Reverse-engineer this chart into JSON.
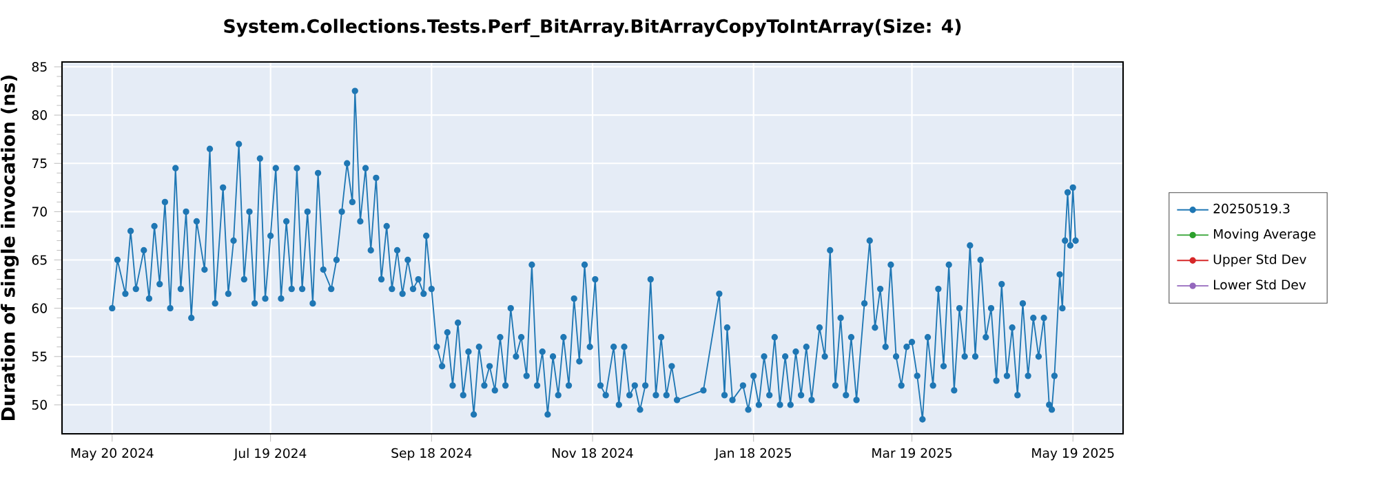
{
  "chart_data": {
    "type": "line",
    "title": "System.Collections.Tests.Perf_BitArray.BitArrayCopyToIntArray(Size: 4)",
    "ylabel": "Duration of single invocation (ns)",
    "xlim": [
      "2024-05-01",
      "2025-06-07"
    ],
    "xticks": [
      {
        "value": "2024-05-20",
        "label": "May 20 2024"
      },
      {
        "value": "2024-07-19",
        "label": "Jul 19 2024"
      },
      {
        "value": "2024-09-18",
        "label": "Sep 18 2024"
      },
      {
        "value": "2024-11-18",
        "label": "Nov 18 2024"
      },
      {
        "value": "2025-01-18",
        "label": "Jan 18 2025"
      },
      {
        "value": "2025-03-19",
        "label": "Mar 19 2025"
      },
      {
        "value": "2025-05-19",
        "label": "May 19 2025"
      }
    ],
    "ylim": [
      47,
      85.5
    ],
    "yticks": [
      50,
      55,
      60,
      65,
      70,
      75,
      80,
      85
    ],
    "grid": true,
    "legend": "right",
    "marker": "circle",
    "line_style": "solid",
    "x": [
      "2024-05-20",
      "2024-05-22",
      "2024-05-25",
      "2024-05-27",
      "2024-05-29",
      "2024-06-01",
      "2024-06-03",
      "2024-06-05",
      "2024-06-07",
      "2024-06-09",
      "2024-06-11",
      "2024-06-13",
      "2024-06-15",
      "2024-06-17",
      "2024-06-19",
      "2024-06-21",
      "2024-06-24",
      "2024-06-26",
      "2024-06-28",
      "2024-07-01",
      "2024-07-03",
      "2024-07-05",
      "2024-07-07",
      "2024-07-09",
      "2024-07-11",
      "2024-07-13",
      "2024-07-15",
      "2024-07-17",
      "2024-07-19",
      "2024-07-21",
      "2024-07-23",
      "2024-07-25",
      "2024-07-27",
      "2024-07-29",
      "2024-07-31",
      "2024-08-02",
      "2024-08-04",
      "2024-08-06",
      "2024-08-08",
      "2024-08-11",
      "2024-08-13",
      "2024-08-15",
      "2024-08-17",
      "2024-08-19",
      "2024-08-20",
      "2024-08-22",
      "2024-08-24",
      "2024-08-26",
      "2024-08-28",
      "2024-08-30",
      "2024-09-01",
      "2024-09-03",
      "2024-09-05",
      "2024-09-07",
      "2024-09-09",
      "2024-09-11",
      "2024-09-13",
      "2024-09-15",
      "2024-09-16",
      "2024-09-18",
      "2024-09-20",
      "2024-09-22",
      "2024-09-24",
      "2024-09-26",
      "2024-09-28",
      "2024-09-30",
      "2024-10-02",
      "2024-10-04",
      "2024-10-06",
      "2024-10-08",
      "2024-10-10",
      "2024-10-12",
      "2024-10-14",
      "2024-10-16",
      "2024-10-18",
      "2024-10-20",
      "2024-10-22",
      "2024-10-24",
      "2024-10-26",
      "2024-10-28",
      "2024-10-30",
      "2024-11-01",
      "2024-11-03",
      "2024-11-05",
      "2024-11-07",
      "2024-11-09",
      "2024-11-11",
      "2024-11-13",
      "2024-11-15",
      "2024-11-17",
      "2024-11-19",
      "2024-11-21",
      "2024-11-23",
      "2024-11-26",
      "2024-11-28",
      "2024-11-30",
      "2024-12-02",
      "2024-12-04",
      "2024-12-06",
      "2024-12-08",
      "2024-12-10",
      "2024-12-12",
      "2024-12-14",
      "2024-12-16",
      "2024-12-18",
      "2024-12-20",
      "2024-12-30",
      "2025-01-05",
      "2025-01-07",
      "2025-01-08",
      "2025-01-10",
      "2025-01-14",
      "2025-01-16",
      "2025-01-18",
      "2025-01-20",
      "2025-01-22",
      "2025-01-24",
      "2025-01-26",
      "2025-01-28",
      "2025-01-30",
      "2025-02-01",
      "2025-02-03",
      "2025-02-05",
      "2025-02-07",
      "2025-02-09",
      "2025-02-12",
      "2025-02-14",
      "2025-02-16",
      "2025-02-18",
      "2025-02-20",
      "2025-02-22",
      "2025-02-24",
      "2025-02-26",
      "2025-03-01",
      "2025-03-03",
      "2025-03-05",
      "2025-03-07",
      "2025-03-09",
      "2025-03-11",
      "2025-03-13",
      "2025-03-15",
      "2025-03-17",
      "2025-03-19",
      "2025-03-21",
      "2025-03-23",
      "2025-03-25",
      "2025-03-27",
      "2025-03-29",
      "2025-03-31",
      "2025-04-02",
      "2025-04-04",
      "2025-04-06",
      "2025-04-08",
      "2025-04-10",
      "2025-04-12",
      "2025-04-14",
      "2025-04-16",
      "2025-04-18",
      "2025-04-20",
      "2025-04-22",
      "2025-04-24",
      "2025-04-26",
      "2025-04-28",
      "2025-04-30",
      "2025-05-02",
      "2025-05-04",
      "2025-05-06",
      "2025-05-08",
      "2025-05-10",
      "2025-05-11",
      "2025-05-12",
      "2025-05-14",
      "2025-05-15",
      "2025-05-16",
      "2025-05-17",
      "2025-05-18",
      "2025-05-19",
      "2025-05-20"
    ],
    "series": [
      {
        "name": "20250519.3",
        "color": "#1f77b4",
        "values": [
          60,
          65,
          61.5,
          68,
          62,
          66,
          61,
          68.5,
          62.5,
          71,
          60,
          74.5,
          62,
          70,
          59,
          69,
          64,
          76.5,
          60.5,
          72.5,
          61.5,
          67,
          77,
          63,
          70,
          60.5,
          75.5,
          61,
          67.5,
          74.5,
          61,
          69,
          62,
          74.5,
          62,
          70,
          60.5,
          74,
          64,
          62,
          65,
          70,
          75,
          71,
          82.5,
          69,
          74.5,
          66,
          73.5,
          63,
          68.5,
          62,
          66,
          61.5,
          65,
          62,
          63,
          61.5,
          67.5,
          62,
          56,
          54,
          57.5,
          52,
          58.5,
          51,
          55.5,
          49,
          56,
          52,
          54,
          51.5,
          57,
          52,
          60,
          55,
          57,
          53,
          64.5,
          52,
          55.5,
          49,
          55,
          51,
          57,
          52,
          61,
          54.5,
          64.5,
          56,
          63,
          52,
          51,
          56,
          50,
          56,
          51,
          52,
          49.5,
          52,
          63,
          51,
          57,
          51,
          54,
          50.5,
          51.5,
          61.5,
          51,
          58,
          50.5,
          52,
          49.5,
          53,
          50,
          55,
          51,
          57,
          50,
          55,
          50,
          55.5,
          51,
          56,
          50.5,
          58,
          55,
          66,
          52,
          59,
          51,
          57,
          50.5,
          60.5,
          67,
          58,
          62,
          56,
          64.5,
          55,
          52,
          56,
          56.5,
          53,
          48.5,
          57,
          52,
          62,
          54,
          64.5,
          51.5,
          60,
          55,
          66.5,
          55,
          65,
          57,
          60,
          52.5,
          62.5,
          53,
          58,
          51,
          60.5,
          53,
          59,
          55,
          59,
          50,
          49.5,
          53,
          63.5,
          60,
          67,
          72,
          66.5,
          72.5,
          67
        ]
      },
      {
        "name": "Moving Average",
        "color": "#2ca02c",
        "values": [
          null,
          null,
          null,
          null,
          null,
          null,
          null,
          null,
          null,
          null,
          null,
          null,
          null,
          null,
          null,
          null,
          null,
          null,
          null,
          null,
          null,
          null,
          null,
          null,
          null,
          null,
          null,
          null,
          null,
          null,
          null,
          null,
          null,
          null,
          null,
          null,
          null,
          null,
          null,
          null,
          null,
          null,
          null,
          null,
          null,
          null,
          null,
          null,
          null,
          null,
          null,
          null,
          null,
          null,
          null,
          null,
          null,
          null,
          null,
          null,
          null,
          null,
          null,
          null,
          null,
          null,
          null,
          null,
          null,
          null,
          null,
          null,
          null,
          null,
          null,
          null,
          null,
          null,
          null,
          null,
          null,
          null,
          null,
          null,
          null,
          null,
          null,
          null,
          null,
          null,
          null,
          null,
          null,
          null,
          null,
          null,
          null,
          null,
          null,
          null,
          null,
          null,
          null,
          null,
          null,
          null,
          null,
          null,
          null,
          null,
          null,
          null,
          null,
          null,
          null,
          null,
          null,
          null,
          null,
          null,
          null,
          null,
          null,
          null,
          null,
          null,
          null,
          null,
          null,
          null,
          null,
          null,
          null,
          null,
          null,
          null,
          null,
          null,
          null,
          null,
          null,
          null,
          null,
          null,
          null,
          null,
          null,
          null,
          null,
          null,
          null,
          null,
          null,
          null,
          null,
          null,
          null,
          null,
          null,
          null,
          null,
          null,
          null,
          null,
          null,
          null,
          null,
          null,
          null,
          null,
          null,
          null,
          null,
          null,
          null,
          null,
          null,
          null
        ]
      },
      {
        "name": "Upper Std Dev",
        "color": "#d62728",
        "values": [
          null,
          null,
          null,
          null,
          null,
          null,
          null,
          null,
          null,
          null,
          null,
          null,
          null,
          null,
          null,
          null,
          null,
          null,
          null,
          null,
          null,
          null,
          null,
          null,
          null,
          null,
          null,
          null,
          null,
          null,
          null,
          null,
          null,
          null,
          null,
          null,
          null,
          null,
          null,
          null,
          null,
          null,
          null,
          null,
          null,
          null,
          null,
          null,
          null,
          null,
          null,
          null,
          null,
          null,
          null,
          null,
          null,
          null,
          null,
          null,
          null,
          null,
          null,
          null,
          null,
          null,
          null,
          null,
          null,
          null,
          null,
          null,
          null,
          null,
          null,
          null,
          null,
          null,
          null,
          null,
          null,
          null,
          null,
          null,
          null,
          null,
          null,
          null,
          null,
          null,
          null,
          null,
          null,
          null,
          null,
          null,
          null,
          null,
          null,
          null,
          null,
          null,
          null,
          null,
          null,
          null,
          null,
          null,
          null,
          null,
          null,
          null,
          null,
          null,
          null,
          null,
          null,
          null,
          null,
          null,
          null,
          null,
          null,
          null,
          null,
          null,
          null,
          null,
          null,
          null,
          null,
          null,
          null,
          null,
          null,
          null,
          null,
          null,
          null,
          null,
          null,
          null,
          null,
          null,
          null,
          null,
          null,
          null,
          null,
          null,
          null,
          null,
          null,
          null,
          null,
          null,
          null,
          null,
          null,
          null,
          null,
          null,
          null,
          null,
          null,
          null,
          null,
          null,
          null,
          null,
          null,
          null,
          null,
          null,
          null,
          null,
          null,
          null
        ]
      },
      {
        "name": "Lower Std Dev",
        "color": "#9467bd",
        "values": [
          null,
          null,
          null,
          null,
          null,
          null,
          null,
          null,
          null,
          null,
          null,
          null,
          null,
          null,
          null,
          null,
          null,
          null,
          null,
          null,
          null,
          null,
          null,
          null,
          null,
          null,
          null,
          null,
          null,
          null,
          null,
          null,
          null,
          null,
          null,
          null,
          null,
          null,
          null,
          null,
          null,
          null,
          null,
          null,
          null,
          null,
          null,
          null,
          null,
          null,
          null,
          null,
          null,
          null,
          null,
          null,
          null,
          null,
          null,
          null,
          null,
          null,
          null,
          null,
          null,
          null,
          null,
          null,
          null,
          null,
          null,
          null,
          null,
          null,
          null,
          null,
          null,
          null,
          null,
          null,
          null,
          null,
          null,
          null,
          null,
          null,
          null,
          null,
          null,
          null,
          null,
          null,
          null,
          null,
          null,
          null,
          null,
          null,
          null,
          null,
          null,
          null,
          null,
          null,
          null,
          null,
          null,
          null,
          null,
          null,
          null,
          null,
          null,
          null,
          null,
          null,
          null,
          null,
          null,
          null,
          null,
          null,
          null,
          null,
          null,
          null,
          null,
          null,
          null,
          null,
          null,
          null,
          null,
          null,
          null,
          null,
          null,
          null,
          null,
          null,
          null,
          null,
          null,
          null,
          null,
          null,
          null,
          null,
          null,
          null,
          null,
          null,
          null,
          null,
          null,
          null,
          null,
          null,
          null,
          null,
          null,
          null,
          null,
          null,
          null,
          null,
          null,
          null,
          null,
          null,
          null,
          null,
          null,
          null,
          null,
          null,
          null,
          null
        ]
      }
    ]
  }
}
